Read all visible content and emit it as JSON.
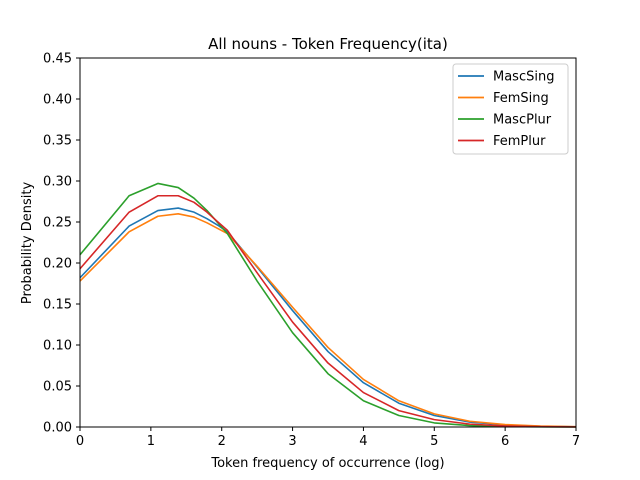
{
  "chart_data": {
    "type": "line",
    "title": "All nouns - Token Frequency(ita)",
    "xlabel": "Token frequency of occurrence (log)",
    "ylabel": "Probability Density",
    "xlim": [
      0,
      7
    ],
    "ylim": [
      0,
      0.45
    ],
    "xticks": [
      0,
      1,
      2,
      3,
      4,
      5,
      6,
      7
    ],
    "yticks": [
      0.0,
      0.05,
      0.1,
      0.15,
      0.2,
      0.25,
      0.3,
      0.35,
      0.4,
      0.45
    ],
    "xtick_labels": [
      "0",
      "1",
      "2",
      "3",
      "4",
      "5",
      "6",
      "7"
    ],
    "ytick_labels": [
      "0.00",
      "0.05",
      "0.10",
      "0.15",
      "0.20",
      "0.25",
      "0.30",
      "0.35",
      "0.40",
      "0.45"
    ],
    "legend_position": "top-right",
    "grid": false,
    "x": [
      0,
      0.693,
      1.099,
      1.386,
      1.609,
      1.792,
      1.946,
      2.079,
      2.5,
      3.0,
      3.5,
      4.0,
      4.5,
      5.0,
      5.5,
      6.0,
      6.5,
      7.0
    ],
    "series": [
      {
        "name": "MascSing",
        "color": "#1f77b4",
        "values": [
          0.182,
          0.245,
          0.264,
          0.267,
          0.262,
          0.254,
          0.246,
          0.238,
          0.195,
          0.142,
          0.092,
          0.054,
          0.029,
          0.014,
          0.006,
          0.0025,
          0.0009,
          0.0003
        ]
      },
      {
        "name": "FemSing",
        "color": "#ff7f0e",
        "values": [
          0.178,
          0.238,
          0.257,
          0.26,
          0.256,
          0.249,
          0.242,
          0.236,
          0.196,
          0.146,
          0.097,
          0.058,
          0.032,
          0.016,
          0.007,
          0.003,
          0.0011,
          0.0004
        ]
      },
      {
        "name": "MascPlur",
        "color": "#2ca02c",
        "values": [
          0.21,
          0.282,
          0.297,
          0.292,
          0.279,
          0.264,
          0.249,
          0.236,
          0.178,
          0.115,
          0.065,
          0.032,
          0.014,
          0.005,
          0.0017,
          0.0005,
          0.0002,
          0.0001
        ]
      },
      {
        "name": "FemPlur",
        "color": "#d62728",
        "values": [
          0.193,
          0.262,
          0.282,
          0.282,
          0.274,
          0.262,
          0.25,
          0.24,
          0.188,
          0.128,
          0.078,
          0.042,
          0.02,
          0.009,
          0.0035,
          0.0012,
          0.0004,
          0.0001
        ]
      }
    ]
  }
}
